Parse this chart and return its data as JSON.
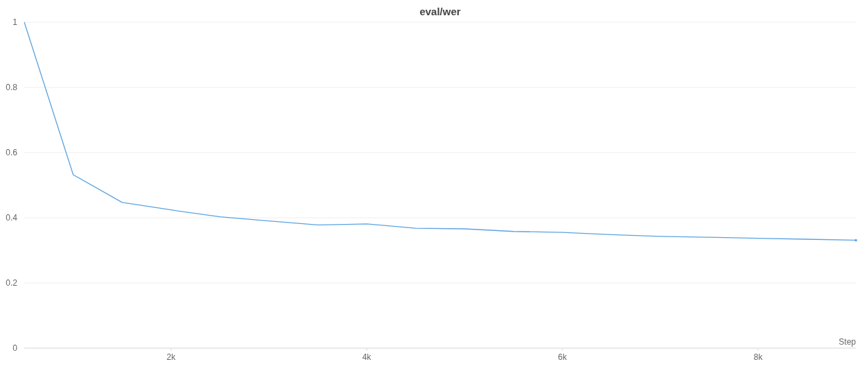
{
  "chart_data": {
    "type": "line",
    "title": "eval/wer",
    "xlabel": "Step",
    "x": [
      500,
      1000,
      1500,
      2000,
      2500,
      3000,
      3500,
      4000,
      4500,
      5000,
      5500,
      6000,
      6500,
      7000,
      7500,
      8000,
      8500,
      9000
    ],
    "series": [
      {
        "color": "#5ba3e0",
        "values": [
          1.0,
          0.532,
          0.447,
          0.424,
          0.403,
          0.39,
          0.378,
          0.381,
          0.368,
          0.366,
          0.358,
          0.355,
          0.348,
          0.343,
          0.34,
          0.337,
          0.334,
          0.331
        ]
      }
    ],
    "xlim": [
      500,
      9000
    ],
    "ylim": [
      0,
      1
    ],
    "xticks": [
      {
        "value": 2000,
        "label": "2k"
      },
      {
        "value": 4000,
        "label": "4k"
      },
      {
        "value": 6000,
        "label": "6k"
      },
      {
        "value": 8000,
        "label": "8k"
      }
    ],
    "yticks": [
      0,
      0.2,
      0.4,
      0.6,
      0.8,
      1
    ],
    "grid": "y",
    "marker": "none",
    "line_style": "solid"
  }
}
